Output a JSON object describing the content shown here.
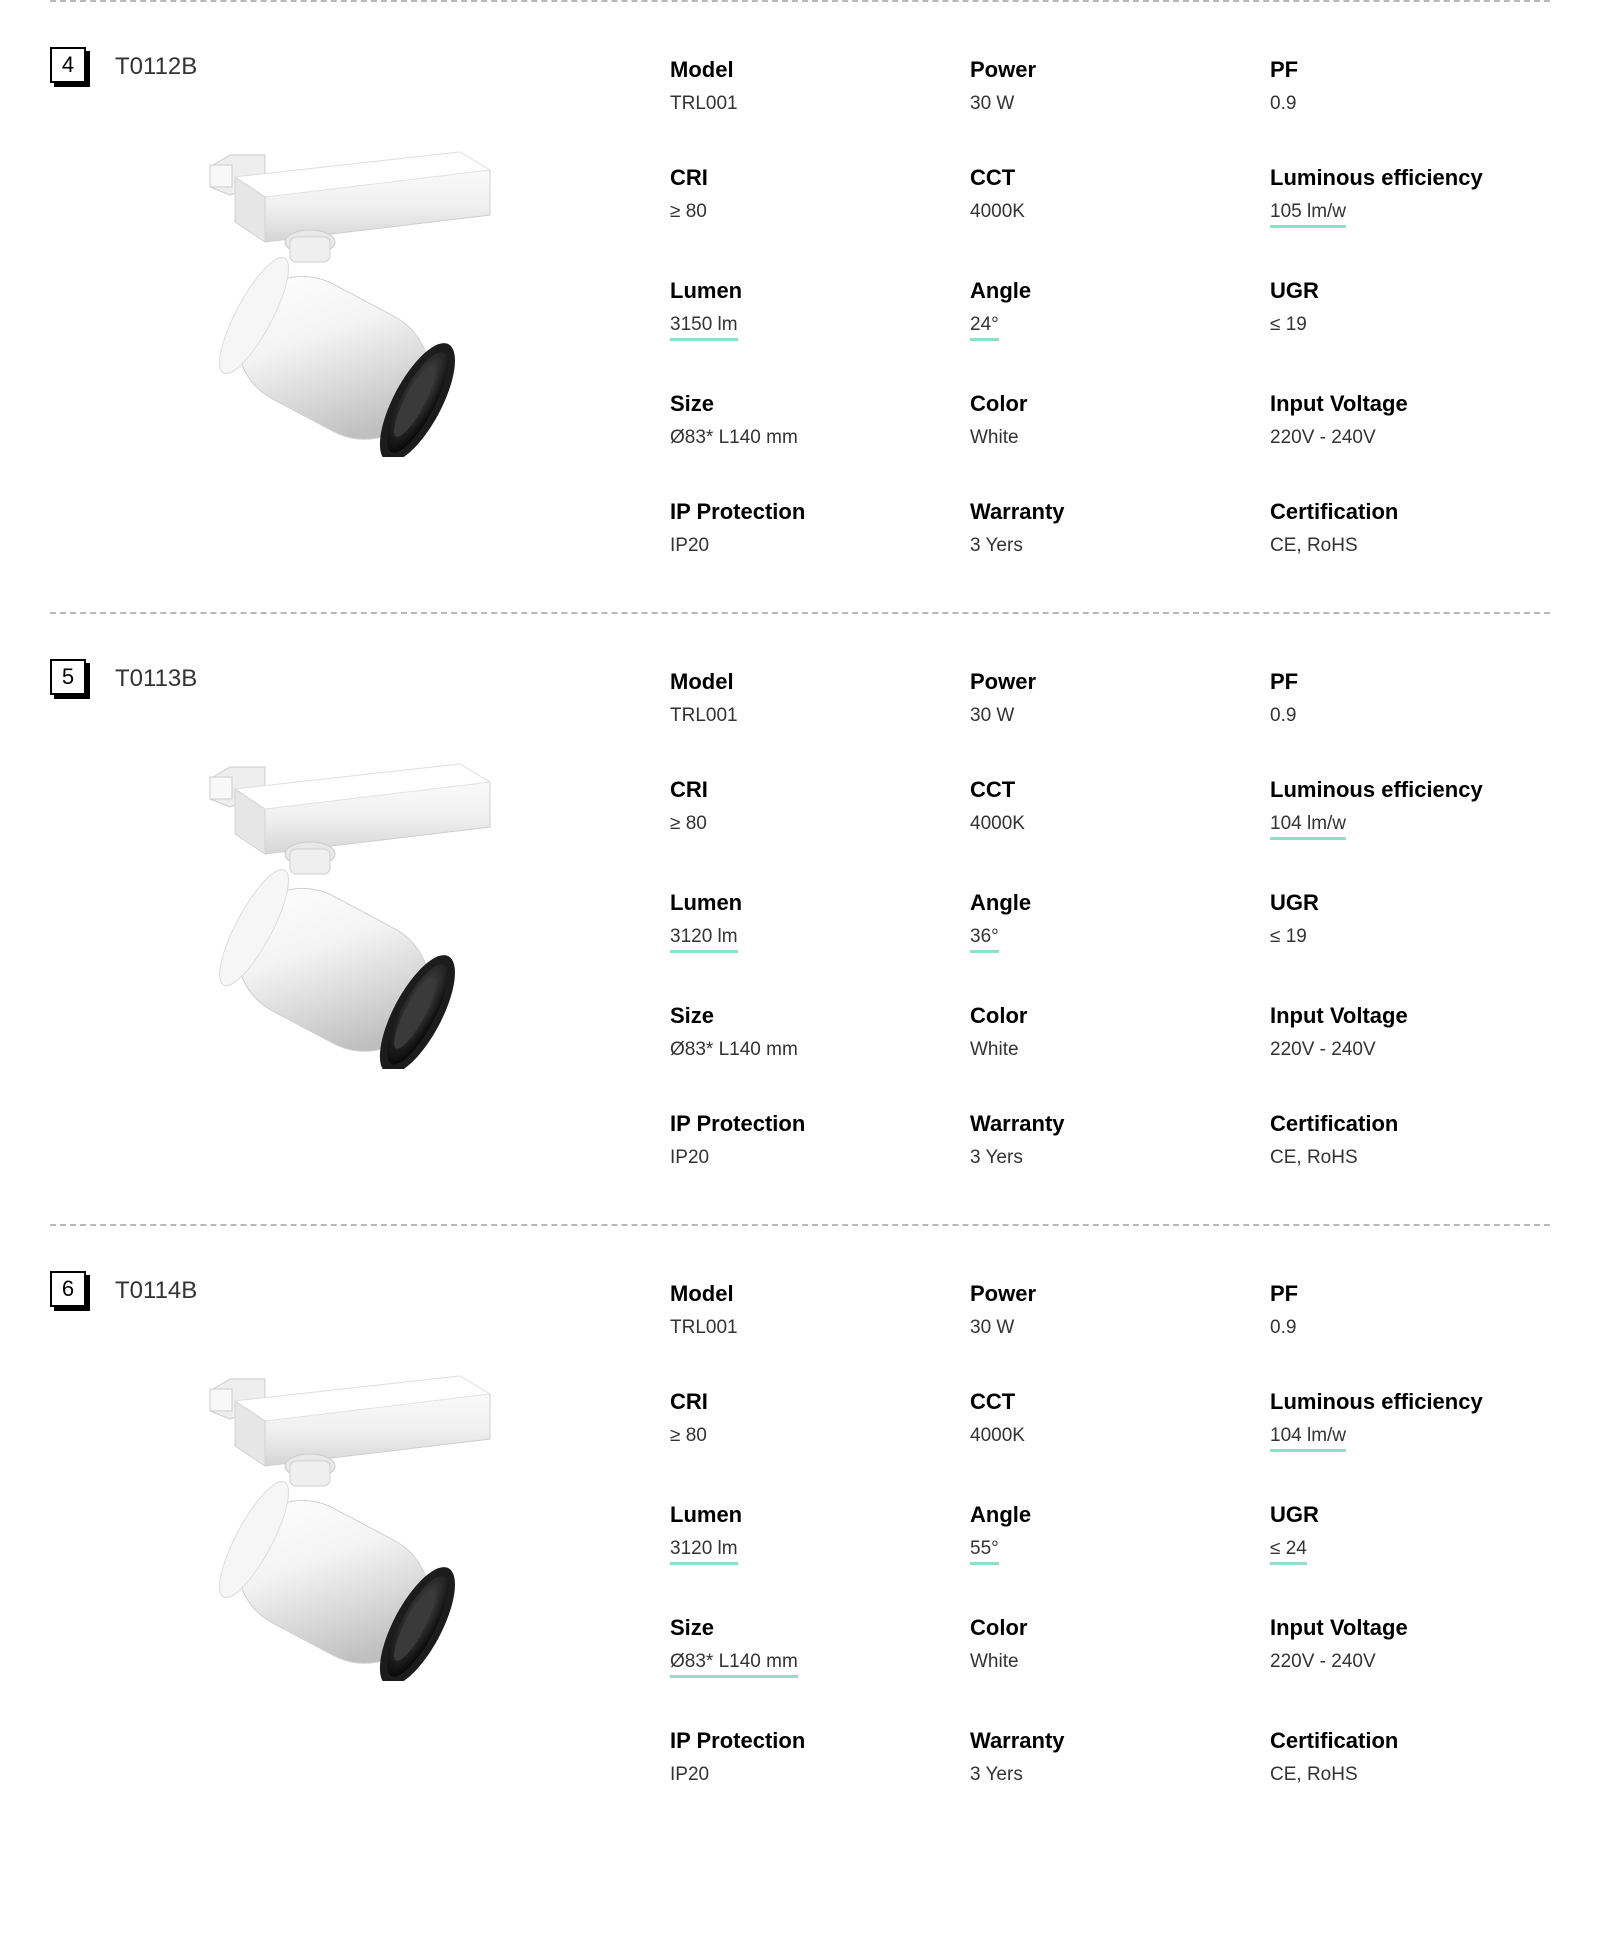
{
  "colors": {
    "underline": "#8fe0c8",
    "divider": "#b8b8b8",
    "text": "#333333",
    "label": "#000000"
  },
  "spec_schema": [
    {
      "key": "model",
      "label": "Model"
    },
    {
      "key": "power",
      "label": "Power"
    },
    {
      "key": "pf",
      "label": "PF"
    },
    {
      "key": "cri",
      "label": "CRI"
    },
    {
      "key": "cct",
      "label": "CCT"
    },
    {
      "key": "lum_eff",
      "label": "Luminous efficiency"
    },
    {
      "key": "lumen",
      "label": "Lumen"
    },
    {
      "key": "angle",
      "label": "Angle"
    },
    {
      "key": "ugr",
      "label": "UGR"
    },
    {
      "key": "size",
      "label": "Size"
    },
    {
      "key": "color",
      "label": "Color"
    },
    {
      "key": "voltage",
      "label": "Input Voltage"
    },
    {
      "key": "ip",
      "label": "IP Protection"
    },
    {
      "key": "warranty",
      "label": "Warranty"
    },
    {
      "key": "cert",
      "label": "Certification"
    }
  ],
  "products": [
    {
      "index": "4",
      "title": "T0112B",
      "specs": {
        "model": {
          "value": "TRL001",
          "underlined": false
        },
        "power": {
          "value": "30 W",
          "underlined": false
        },
        "pf": {
          "value": "0.9",
          "underlined": false
        },
        "cri": {
          "value": "≥ 80",
          "underlined": false
        },
        "cct": {
          "value": "4000K",
          "underlined": false
        },
        "lum_eff": {
          "value": "105 lm/w",
          "underlined": true
        },
        "lumen": {
          "value": "3150 lm",
          "underlined": true
        },
        "angle": {
          "value": "24°",
          "underlined": true
        },
        "ugr": {
          "value": "≤ 19",
          "underlined": false
        },
        "size": {
          "value": "Ø83* L140 mm",
          "underlined": false
        },
        "color": {
          "value": "White",
          "underlined": false
        },
        "voltage": {
          "value": "220V - 240V",
          "underlined": false
        },
        "ip": {
          "value": "IP20",
          "underlined": false
        },
        "warranty": {
          "value": "3 Yers",
          "underlined": false
        },
        "cert": {
          "value": "CE, RoHS",
          "underlined": false
        }
      }
    },
    {
      "index": "5",
      "title": "T0113B",
      "specs": {
        "model": {
          "value": "TRL001",
          "underlined": false
        },
        "power": {
          "value": "30 W",
          "underlined": false
        },
        "pf": {
          "value": "0.9",
          "underlined": false
        },
        "cri": {
          "value": "≥ 80",
          "underlined": false
        },
        "cct": {
          "value": "4000K",
          "underlined": false
        },
        "lum_eff": {
          "value": "104 lm/w",
          "underlined": true
        },
        "lumen": {
          "value": "3120 lm",
          "underlined": true
        },
        "angle": {
          "value": "36°",
          "underlined": true
        },
        "ugr": {
          "value": "≤ 19",
          "underlined": false
        },
        "size": {
          "value": "Ø83* L140 mm",
          "underlined": false
        },
        "color": {
          "value": "White",
          "underlined": false
        },
        "voltage": {
          "value": "220V - 240V",
          "underlined": false
        },
        "ip": {
          "value": "IP20",
          "underlined": false
        },
        "warranty": {
          "value": "3 Yers",
          "underlined": false
        },
        "cert": {
          "value": "CE, RoHS",
          "underlined": false
        }
      }
    },
    {
      "index": "6",
      "title": "T0114B",
      "specs": {
        "model": {
          "value": "TRL001",
          "underlined": false
        },
        "power": {
          "value": "30 W",
          "underlined": false
        },
        "pf": {
          "value": "0.9",
          "underlined": false
        },
        "cri": {
          "value": "≥ 80",
          "underlined": false
        },
        "cct": {
          "value": "4000K",
          "underlined": false
        },
        "lum_eff": {
          "value": "104 lm/w",
          "underlined": true
        },
        "lumen": {
          "value": "3120 lm",
          "underlined": true
        },
        "angle": {
          "value": "55°",
          "underlined": true
        },
        "ugr": {
          "value": "≤ 24",
          "underlined": true
        },
        "size": {
          "value": "Ø83* L140 mm",
          "underlined": true
        },
        "color": {
          "value": "White",
          "underlined": false
        },
        "voltage": {
          "value": "220V - 240V",
          "underlined": false
        },
        "ip": {
          "value": "IP20",
          "underlined": false
        },
        "warranty": {
          "value": "3 Yers",
          "underlined": false
        },
        "cert": {
          "value": "CE, RoHS",
          "underlined": false
        }
      }
    }
  ]
}
